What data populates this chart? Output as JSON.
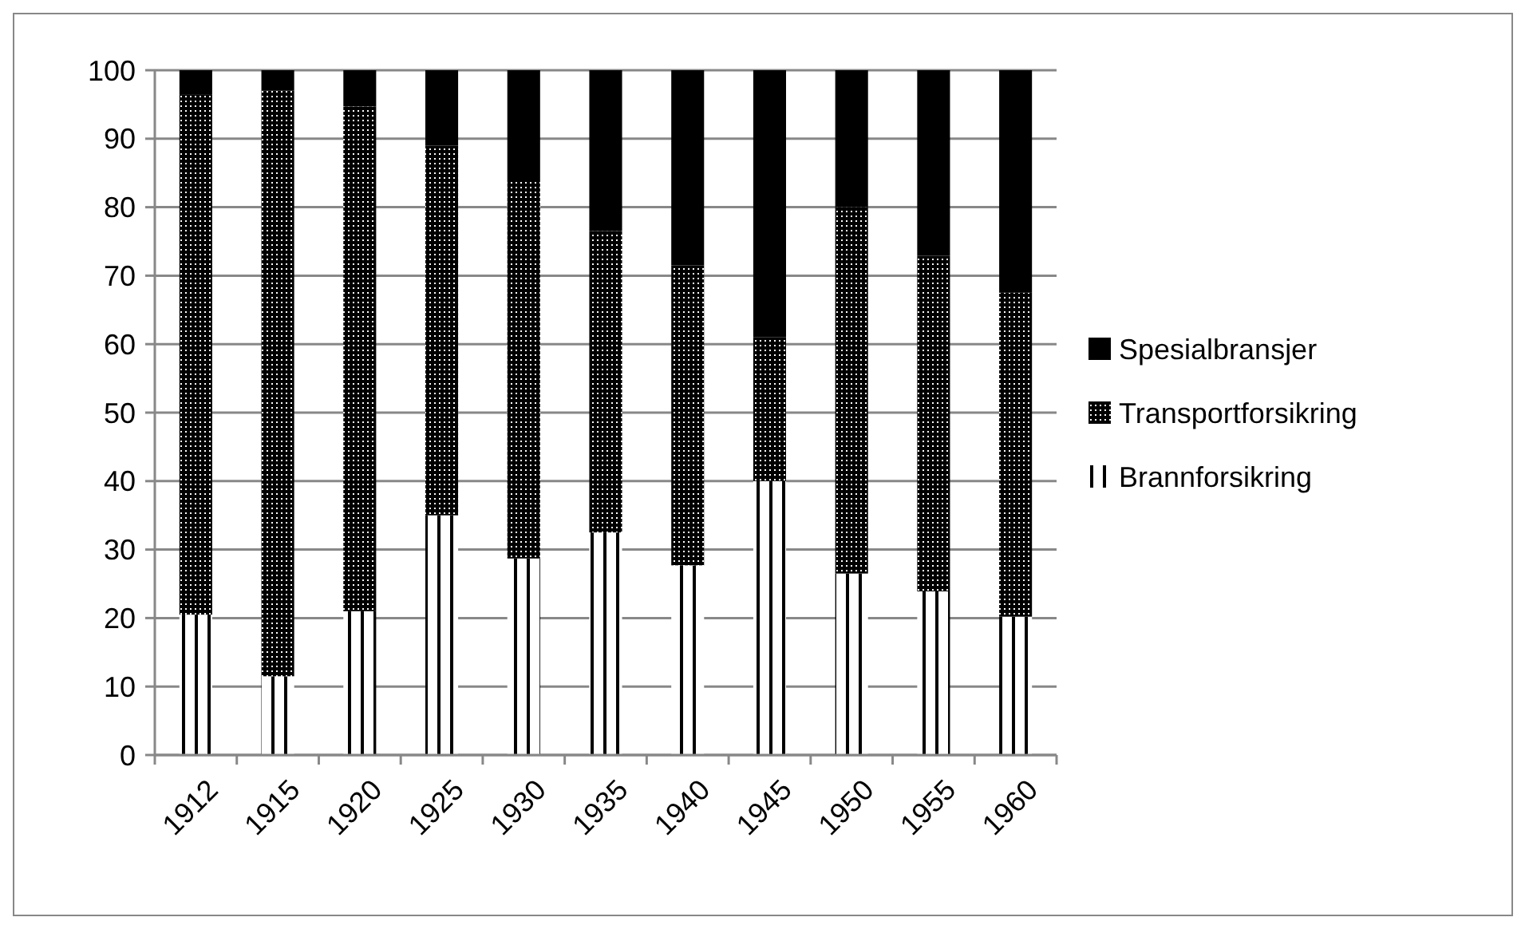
{
  "chart_data": {
    "type": "bar",
    "stacked": true,
    "categories": [
      "1912",
      "1915",
      "1920",
      "1925",
      "1930",
      "1935",
      "1940",
      "1945",
      "1950",
      "1955",
      "1960"
    ],
    "series": [
      {
        "name": "Brannforsikring",
        "color": "#ffffff",
        "values": [
          20.5,
          11.5,
          21,
          35,
          28.7,
          32.5,
          27.7,
          40,
          26.5,
          23.9,
          20.2
        ]
      },
      {
        "name": "Transportforsikring",
        "color": "#000000",
        "values": [
          75.9,
          85.5,
          73.7,
          54,
          55.1,
          44,
          43.8,
          21,
          53.5,
          49,
          47.3
        ]
      },
      {
        "name": "Spesialbransjer",
        "color": "#000000",
        "values": [
          3.6,
          3,
          5.3,
          11,
          16.2,
          23.5,
          28.5,
          39,
          20,
          27.1,
          32.5
        ]
      }
    ],
    "ylim": [
      0,
      100
    ],
    "yticks": [
      0,
      10,
      20,
      30,
      40,
      50,
      60,
      70,
      80,
      90,
      100
    ],
    "grid": "y",
    "legend": "right"
  }
}
